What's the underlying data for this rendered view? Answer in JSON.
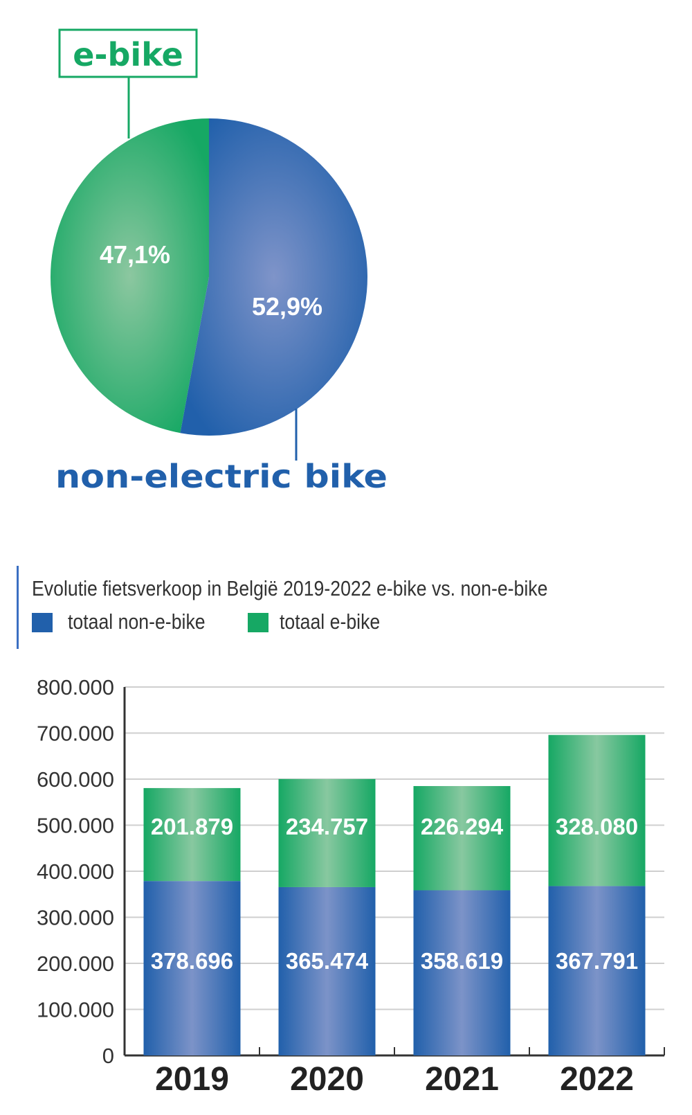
{
  "colors": {
    "non_e_bike": "#2160ab",
    "e_bike": "#16a864",
    "grid": "#cccccc",
    "axis": "#333333"
  },
  "chart_data": [
    {
      "type": "pie",
      "slices": [
        {
          "label": "e-bike",
          "value": 47.1,
          "value_label": "47,1%"
        },
        {
          "label": "non-electric bike",
          "value": 52.9,
          "value_label": "52,9%"
        }
      ]
    },
    {
      "type": "bar",
      "stacked": true,
      "title": "Evolutie fietsverkoop in België 2019-2022 e-bike vs. non-e-bike",
      "categories": [
        "2019",
        "2020",
        "2021",
        "2022"
      ],
      "series": [
        {
          "name": "totaal non-e-bike",
          "values": [
            378696,
            365474,
            358619,
            367791
          ],
          "value_labels": [
            "378.696",
            "365.474",
            "358.619",
            "367.791"
          ]
        },
        {
          "name": "totaal e-bike",
          "values": [
            201879,
            234757,
            226294,
            328080
          ],
          "value_labels": [
            "201.879",
            "234.757",
            "226.294",
            "328.080"
          ]
        }
      ],
      "ylim": [
        0,
        800000
      ],
      "yticks": [
        0,
        100000,
        200000,
        300000,
        400000,
        500000,
        600000,
        700000,
        800000
      ],
      "ytick_labels": [
        "0",
        "100.000",
        "200.000",
        "300.000",
        "400.000",
        "500.000",
        "600.000",
        "700.000",
        "800.000"
      ],
      "grid": true,
      "legend": "top-left"
    }
  ]
}
